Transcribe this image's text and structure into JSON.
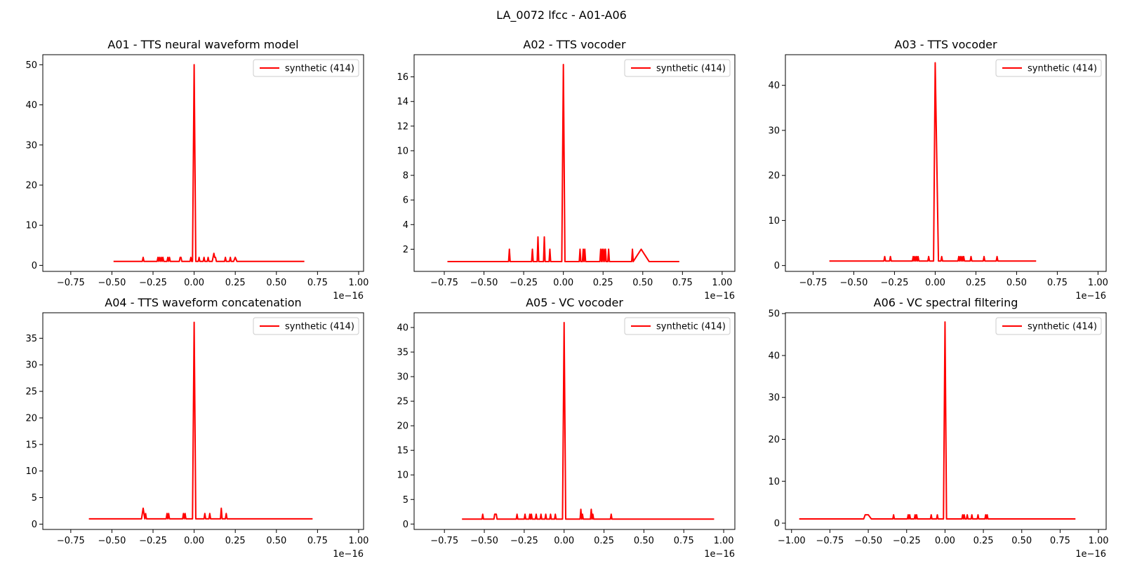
{
  "figure": {
    "suptitle": "LA_0072 lfcc - A01-A06"
  },
  "chart_data": [
    {
      "type": "line",
      "title": "A01 - TTS neural waveform model",
      "xlabel": "",
      "ylabel": "",
      "x_scale_label": "1e−16",
      "xlim": [
        -0.92,
        1.03
      ],
      "ylim": [
        -1.5,
        52.5
      ],
      "xticks": [
        -0.75,
        -0.5,
        -0.25,
        0.0,
        0.25,
        0.5,
        0.75,
        1.0
      ],
      "xtick_labels": [
        "−0.75",
        "−0.50",
        "−0.25",
        "0.00",
        "0.25",
        "0.50",
        "0.75",
        "1.00"
      ],
      "yticks": [
        0,
        10,
        20,
        30,
        40,
        50
      ],
      "ytick_labels": [
        "0",
        "10",
        "20",
        "30",
        "40",
        "50"
      ],
      "legend": "top-right",
      "line_color": "#ff0000",
      "series": [
        {
          "name": "synthetic (414)",
          "x": [
            -0.49,
            -0.315,
            -0.31,
            -0.305,
            -0.225,
            -0.22,
            -0.215,
            -0.21,
            -0.205,
            -0.2,
            -0.195,
            -0.19,
            -0.185,
            -0.165,
            -0.16,
            -0.155,
            -0.15,
            -0.145,
            -0.09,
            -0.085,
            -0.08,
            -0.075,
            -0.025,
            -0.02,
            -0.015,
            -0.01,
            0.0,
            0.01,
            0.025,
            0.03,
            0.035,
            0.055,
            0.06,
            0.065,
            0.08,
            0.085,
            0.09,
            0.11,
            0.115,
            0.12,
            0.125,
            0.13,
            0.135,
            0.14,
            0.185,
            0.19,
            0.195,
            0.215,
            0.22,
            0.225,
            0.24,
            0.25,
            0.26,
            0.67
          ],
          "y": [
            1,
            1,
            2,
            1,
            1,
            2,
            1,
            2,
            1,
            2,
            1,
            2,
            1,
            1,
            2,
            1,
            2,
            1,
            1,
            2,
            2,
            1,
            1,
            2,
            1,
            1,
            50,
            1,
            1,
            2,
            1,
            1,
            2,
            1,
            1,
            2,
            1,
            1,
            2,
            3,
            2,
            2,
            1,
            1,
            1,
            2,
            1,
            1,
            2,
            1,
            1,
            2,
            1,
            1
          ]
        }
      ]
    },
    {
      "type": "line",
      "title": "A02 - TTS vocoder",
      "xlabel": "",
      "ylabel": "",
      "x_scale_label": "1e−16",
      "xlim": [
        -0.94,
        1.08
      ],
      "ylim": [
        0.2,
        17.8
      ],
      "xticks": [
        -0.75,
        -0.5,
        -0.25,
        0.0,
        0.25,
        0.5,
        0.75,
        1.0
      ],
      "xtick_labels": [
        "−0.75",
        "−0.50",
        "−0.25",
        "0.00",
        "0.25",
        "0.50",
        "0.75",
        "1.00"
      ],
      "yticks": [
        2,
        4,
        6,
        8,
        10,
        12,
        14,
        16
      ],
      "ytick_labels": [
        "2",
        "4",
        "6",
        "8",
        "10",
        "12",
        "14",
        "16"
      ],
      "legend": "top-right",
      "line_color": "#ff0000",
      "series": [
        {
          "name": "synthetic (414)",
          "x": [
            -0.73,
            -0.345,
            -0.34,
            -0.335,
            -0.2,
            -0.195,
            -0.19,
            -0.165,
            -0.16,
            -0.155,
            -0.125,
            -0.12,
            -0.115,
            -0.09,
            -0.085,
            -0.08,
            -0.01,
            0.0,
            0.01,
            0.1,
            0.105,
            0.11,
            0.12,
            0.125,
            0.13,
            0.135,
            0.14,
            0.145,
            0.23,
            0.235,
            0.24,
            0.245,
            0.25,
            0.255,
            0.26,
            0.265,
            0.27,
            0.28,
            0.285,
            0.29,
            0.43,
            0.435,
            0.44,
            0.49,
            0.54,
            0.73
          ],
          "y": [
            1,
            1,
            2,
            1,
            1,
            2,
            1,
            1,
            3,
            1,
            1,
            3,
            1,
            1,
            2,
            1,
            1,
            17,
            1,
            1,
            2,
            1,
            1,
            2,
            1,
            2,
            1,
            1,
            1,
            2,
            1,
            2,
            1,
            2,
            1,
            2,
            1,
            1,
            2,
            1,
            1,
            2,
            1,
            2,
            1,
            1
          ]
        }
      ]
    },
    {
      "type": "line",
      "title": "A03 - TTS vocoder",
      "xlabel": "",
      "ylabel": "",
      "x_scale_label": "1e−16",
      "xlim": [
        -0.92,
        1.05
      ],
      "ylim": [
        -1.3,
        46.8
      ],
      "xticks": [
        -0.75,
        -0.5,
        -0.25,
        0.0,
        0.25,
        0.5,
        0.75,
        1.0
      ],
      "xtick_labels": [
        "−0.75",
        "−0.50",
        "−0.25",
        "0.00",
        "0.25",
        "0.50",
        "0.75",
        "1.00"
      ],
      "yticks": [
        0,
        10,
        20,
        30,
        40
      ],
      "ytick_labels": [
        "0",
        "10",
        "20",
        "30",
        "40"
      ],
      "legend": "top-right",
      "line_color": "#ff0000",
      "series": [
        {
          "name": "synthetic (414)",
          "x": [
            -0.65,
            -0.315,
            -0.31,
            -0.305,
            -0.28,
            -0.275,
            -0.27,
            -0.14,
            -0.135,
            -0.13,
            -0.125,
            -0.12,
            -0.115,
            -0.11,
            -0.105,
            -0.1,
            -0.045,
            -0.04,
            -0.035,
            -0.01,
            0.0,
            0.02,
            0.035,
            0.04,
            0.045,
            0.14,
            0.145,
            0.15,
            0.155,
            0.16,
            0.165,
            0.17,
            0.175,
            0.18,
            0.215,
            0.22,
            0.225,
            0.295,
            0.3,
            0.305,
            0.375,
            0.38,
            0.385,
            0.62
          ],
          "y": [
            1,
            1,
            2,
            1,
            1,
            2,
            1,
            1,
            2,
            1,
            2,
            1,
            2,
            1,
            2,
            1,
            1,
            2,
            1,
            1,
            45,
            1,
            1,
            2,
            1,
            1,
            2,
            1,
            2,
            1,
            2,
            1,
            2,
            1,
            1,
            2,
            1,
            1,
            2,
            1,
            1,
            2,
            1,
            1
          ]
        }
      ]
    },
    {
      "type": "line",
      "title": "A04 - TTS waveform concatenation",
      "xlabel": "",
      "ylabel": "",
      "x_scale_label": "1e−16",
      "xlim": [
        -0.92,
        1.03
      ],
      "ylim": [
        -1.0,
        39.8
      ],
      "xticks": [
        -0.75,
        -0.5,
        -0.25,
        0.0,
        0.25,
        0.5,
        0.75,
        1.0
      ],
      "xtick_labels": [
        "−0.75",
        "−0.50",
        "−0.25",
        "0.00",
        "0.25",
        "0.50",
        "0.75",
        "1.00"
      ],
      "yticks": [
        0,
        5,
        10,
        15,
        20,
        25,
        30,
        35
      ],
      "ytick_labels": [
        "0",
        "5",
        "10",
        "15",
        "20",
        "25",
        "30",
        "35"
      ],
      "legend": "top-right",
      "line_color": "#ff0000",
      "series": [
        {
          "name": "synthetic (414)",
          "x": [
            -0.64,
            -0.32,
            -0.31,
            -0.3,
            -0.295,
            -0.29,
            -0.17,
            -0.165,
            -0.16,
            -0.155,
            -0.15,
            -0.07,
            -0.065,
            -0.06,
            -0.055,
            -0.05,
            -0.01,
            0.0,
            0.01,
            0.06,
            0.065,
            0.07,
            0.09,
            0.095,
            0.1,
            0.16,
            0.165,
            0.17,
            0.19,
            0.195,
            0.2,
            0.72
          ],
          "y": [
            1,
            1,
            3,
            1,
            2,
            1,
            1,
            2,
            1,
            2,
            1,
            1,
            2,
            1,
            2,
            1,
            1,
            38,
            1,
            1,
            2,
            1,
            1,
            2,
            1,
            1,
            3,
            1,
            1,
            2,
            1,
            1
          ]
        }
      ]
    },
    {
      "type": "line",
      "title": "A05 - VC vocoder",
      "xlabel": "",
      "ylabel": "",
      "x_scale_label": "1e−16",
      "xlim": [
        -0.94,
        1.07
      ],
      "ylim": [
        -1.1,
        43.0
      ],
      "xticks": [
        -0.75,
        -0.5,
        -0.25,
        0.0,
        0.25,
        0.5,
        0.75,
        1.0
      ],
      "xtick_labels": [
        "−0.75",
        "−0.50",
        "−0.25",
        "0.00",
        "0.25",
        "0.50",
        "0.75",
        "1.00"
      ],
      "yticks": [
        0,
        5,
        10,
        15,
        20,
        25,
        30,
        35,
        40
      ],
      "ytick_labels": [
        "0",
        "5",
        "10",
        "15",
        "20",
        "25",
        "30",
        "35",
        "40"
      ],
      "legend": "top-right",
      "line_color": "#ff0000",
      "series": [
        {
          "name": "synthetic (414)",
          "x": [
            -0.64,
            -0.515,
            -0.51,
            -0.505,
            -0.44,
            -0.435,
            -0.425,
            -0.42,
            -0.3,
            -0.295,
            -0.29,
            -0.25,
            -0.245,
            -0.24,
            -0.22,
            -0.215,
            -0.21,
            -0.205,
            -0.2,
            -0.18,
            -0.175,
            -0.17,
            -0.15,
            -0.145,
            -0.14,
            -0.12,
            -0.115,
            -0.11,
            -0.09,
            -0.085,
            -0.08,
            -0.06,
            -0.055,
            -0.05,
            -0.01,
            0.0,
            0.01,
            0.1,
            0.105,
            0.11,
            0.115,
            0.12,
            0.165,
            0.17,
            0.175,
            0.18,
            0.185,
            0.29,
            0.295,
            0.3,
            0.94
          ],
          "y": [
            1,
            1,
            2,
            1,
            1,
            2,
            2,
            1,
            1,
            2,
            1,
            1,
            2,
            1,
            1,
            2,
            1,
            2,
            1,
            1,
            2,
            1,
            1,
            2,
            1,
            1,
            2,
            1,
            1,
            2,
            1,
            1,
            2,
            1,
            1,
            41,
            1,
            1,
            3,
            1,
            2,
            1,
            1,
            3,
            1,
            2,
            1,
            1,
            2,
            1,
            1
          ]
        }
      ]
    },
    {
      "type": "line",
      "title": "A06 - VC spectral filtering",
      "xlabel": "",
      "ylabel": "",
      "x_scale_label": "1e−16",
      "xlim": [
        -1.04,
        1.05
      ],
      "ylim": [
        -1.5,
        50.2
      ],
      "xticks": [
        -1.0,
        -0.75,
        -0.5,
        -0.25,
        0.0,
        0.25,
        0.5,
        0.75,
        1.0
      ],
      "xtick_labels": [
        "−1.00",
        "−0.75",
        "−0.50",
        "−0.25",
        "0.00",
        "0.25",
        "0.50",
        "0.75",
        "1.00"
      ],
      "yticks": [
        0,
        10,
        20,
        30,
        40,
        50
      ],
      "ytick_labels": [
        "0",
        "10",
        "20",
        "30",
        "40",
        "50"
      ],
      "legend": "top-right",
      "line_color": "#ff0000",
      "series": [
        {
          "name": "synthetic (414)",
          "x": [
            -0.95,
            -0.53,
            -0.52,
            -0.5,
            -0.48,
            -0.34,
            -0.335,
            -0.33,
            -0.245,
            -0.24,
            -0.235,
            -0.23,
            -0.225,
            -0.2,
            -0.195,
            -0.19,
            -0.185,
            -0.18,
            -0.095,
            -0.09,
            -0.085,
            -0.055,
            -0.05,
            -0.045,
            -0.01,
            0.0,
            0.01,
            0.11,
            0.115,
            0.12,
            0.125,
            0.13,
            0.14,
            0.145,
            0.15,
            0.17,
            0.175,
            0.18,
            0.21,
            0.215,
            0.22,
            0.26,
            0.265,
            0.27,
            0.275,
            0.28,
            0.85
          ],
          "y": [
            1,
            1,
            2,
            2,
            1,
            1,
            2,
            1,
            1,
            2,
            1,
            2,
            1,
            1,
            2,
            1,
            2,
            1,
            1,
            2,
            1,
            1,
            2,
            1,
            1,
            48,
            1,
            1,
            2,
            1,
            2,
            1,
            1,
            2,
            1,
            1,
            2,
            1,
            1,
            2,
            1,
            1,
            2,
            1,
            2,
            1,
            1
          ]
        }
      ]
    }
  ]
}
